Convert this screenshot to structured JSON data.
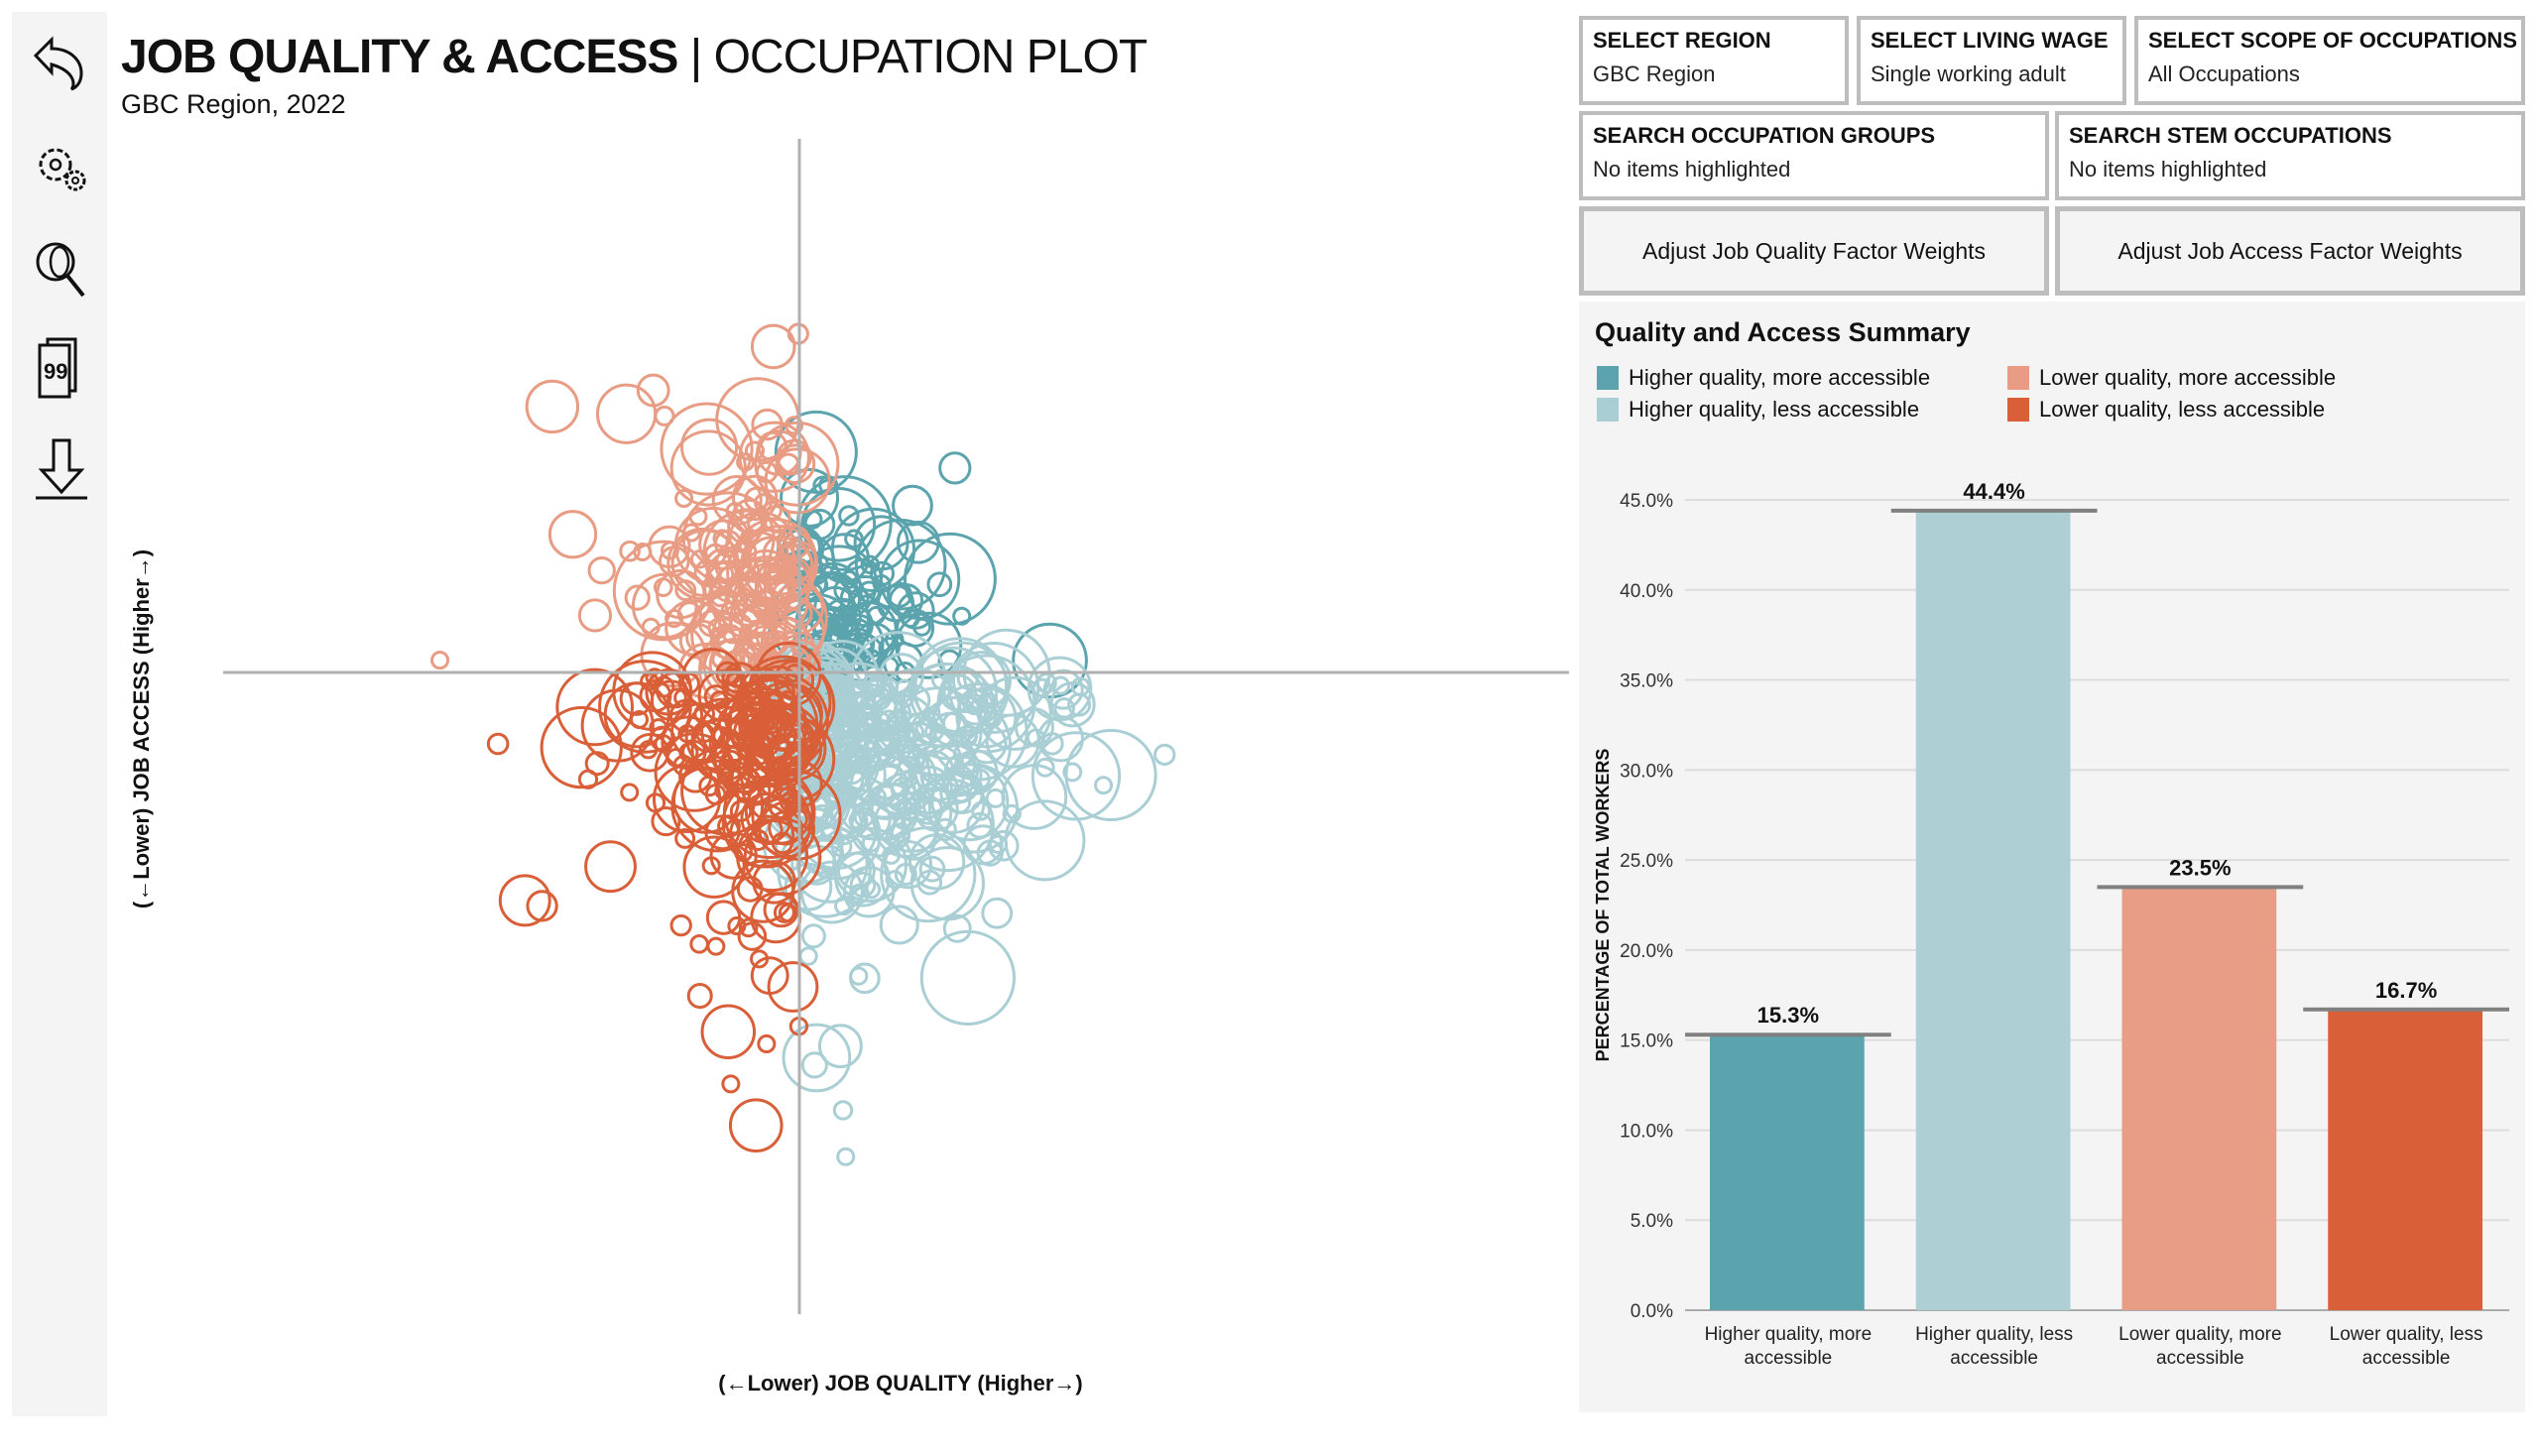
{
  "sidebar": {
    "items": [
      {
        "icon": "back-arrow-icon"
      },
      {
        "icon": "settings-gears-icon"
      },
      {
        "icon": "search-magnifier-icon"
      },
      {
        "icon": "quote-pages-icon"
      },
      {
        "icon": "download-icon"
      }
    ]
  },
  "header": {
    "title_bold": "JOB QUALITY & ACCESS",
    "title_light": "| OCCUPATION PLOT",
    "subtitle": "GBC Region, 2022"
  },
  "scatter": {
    "x_label": "(←Lower) JOB QUALITY (Higher→)",
    "y_label": "(←Lower) JOB ACCESS (Higher→)",
    "quadrants": [
      {
        "name": "Higher quality, more accessible",
        "color": "#5ba4ae",
        "count": 110
      },
      {
        "name": "Higher quality, less accessible",
        "color": "#a9cfd5",
        "count": 300
      },
      {
        "name": "Lower quality, more accessible",
        "color": "#e89c84",
        "count": 150
      },
      {
        "name": "Lower quality, less accessible",
        "color": "#d95f38",
        "count": 190
      }
    ]
  },
  "controls": {
    "region": {
      "label": "SELECT REGION",
      "value": "GBC Region"
    },
    "wage": {
      "label": "SELECT LIVING WAGE",
      "value": "Single working adult"
    },
    "scope": {
      "label": "SELECT SCOPE OF OCCUPATIONS",
      "value": "All Occupations"
    },
    "groups": {
      "label": "SEARCH OCCUPATION GROUPS",
      "value": "No items highlighted"
    },
    "stem": {
      "label": "SEARCH STEM OCCUPATIONS",
      "value": "No items highlighted"
    },
    "quality_btn": "Adjust Job Quality Factor Weights",
    "access_btn": "Adjust Job Access Factor Weights"
  },
  "summary": {
    "title": "Quality and Access Summary",
    "legend": [
      {
        "label": "Higher quality, more accessible",
        "color": "#5ba4ae"
      },
      {
        "label": "Lower quality, more accessible",
        "color": "#e89c84"
      },
      {
        "label": "Higher quality, less accessible",
        "color": "#a9cfd5"
      },
      {
        "label": "Lower quality, less accessible",
        "color": "#d95f38"
      }
    ]
  },
  "chart_data": {
    "type": "bar",
    "categories": [
      "Higher quality, more accessible",
      "Higher quality, less accessible",
      "Lower quality, more accessible",
      "Lower quality, less accessible"
    ],
    "category_lines": [
      [
        "Higher quality, more",
        "accessible"
      ],
      [
        "Higher quality, less",
        "accessible"
      ],
      [
        "Lower quality, more",
        "accessible"
      ],
      [
        "Lower quality, less",
        "accessible"
      ]
    ],
    "values": [
      15.3,
      44.4,
      23.5,
      16.7
    ],
    "data_labels": [
      "15.3%",
      "44.4%",
      "23.5%",
      "16.7%"
    ],
    "colors": [
      "#5ba4ae",
      "#aed0d5",
      "#e89e86",
      "#d95f38"
    ],
    "ylabel": "PERCENTAGE OF TOTAL WORKERS",
    "ylim": [
      0,
      45
    ],
    "yticks": [
      "0.0%",
      "5.0%",
      "10.0%",
      "15.0%",
      "20.0%",
      "25.0%",
      "30.0%",
      "35.0%",
      "40.0%",
      "45.0%"
    ],
    "grid": true
  }
}
